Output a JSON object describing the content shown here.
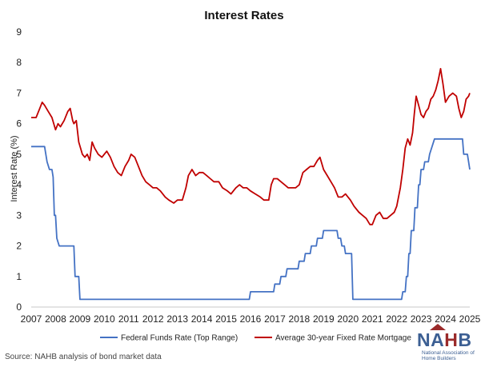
{
  "chart_data": {
    "type": "line",
    "title": "Interest Rates",
    "xlabel": "",
    "ylabel": "Interest Rate (%)",
    "xlim": [
      2007,
      2025
    ],
    "ylim": [
      0,
      9
    ],
    "yticks": [
      "0",
      "1",
      "2",
      "3",
      "4",
      "5",
      "6",
      "7",
      "8",
      "9"
    ],
    "xticks": [
      "2007",
      "2008",
      "2009",
      "2010",
      "2011",
      "2012",
      "2013",
      "2014",
      "2015",
      "2016",
      "2017",
      "2018",
      "2019",
      "2020",
      "2021",
      "2022",
      "2023",
      "2024",
      "2025"
    ],
    "grid": false,
    "legend_position": "bottom",
    "series": [
      {
        "name": "Federal Funds Rate (Top Range)",
        "color": "#4472c4",
        "x": [
          2007.0,
          2007.55,
          2007.65,
          2007.75,
          2007.85,
          2007.9,
          2007.95,
          2008.0,
          2008.05,
          2008.15,
          2008.3,
          2008.4,
          2008.75,
          2008.8,
          2008.95,
          2009.0,
          2015.95,
          2016.0,
          2016.95,
          2017.0,
          2017.2,
          2017.25,
          2017.45,
          2017.5,
          2017.95,
          2018.0,
          2018.2,
          2018.25,
          2018.45,
          2018.5,
          2018.7,
          2018.75,
          2018.95,
          2019.0,
          2019.55,
          2019.6,
          2019.7,
          2019.75,
          2019.85,
          2019.9,
          2020.15,
          2020.2,
          2022.2,
          2022.25,
          2022.35,
          2022.4,
          2022.45,
          2022.5,
          2022.55,
          2022.6,
          2022.7,
          2022.75,
          2022.85,
          2022.9,
          2022.95,
          2023.0,
          2023.1,
          2023.15,
          2023.3,
          2023.35,
          2023.55,
          2024.7,
          2024.75,
          2024.9,
          2024.95,
          2025.0
        ],
        "values": [
          5.25,
          5.25,
          4.75,
          4.5,
          4.5,
          4.25,
          3.0,
          3.0,
          2.25,
          2.0,
          2.0,
          2.0,
          2.0,
          1.0,
          1.0,
          0.25,
          0.25,
          0.5,
          0.5,
          0.75,
          0.75,
          1.0,
          1.0,
          1.25,
          1.25,
          1.5,
          1.5,
          1.75,
          1.75,
          2.0,
          2.0,
          2.25,
          2.25,
          2.5,
          2.5,
          2.25,
          2.25,
          2.0,
          2.0,
          1.75,
          1.75,
          0.25,
          0.25,
          0.5,
          0.5,
          1.0,
          1.0,
          1.75,
          1.75,
          2.5,
          2.5,
          3.25,
          3.25,
          4.0,
          4.0,
          4.5,
          4.5,
          4.75,
          4.75,
          5.0,
          5.5,
          5.5,
          5.0,
          5.0,
          4.75,
          4.5
        ]
      },
      {
        "name": "Average 30-year Fixed Rate Mortgage",
        "color": "#c00000",
        "x": [
          2007.0,
          2007.2,
          2007.35,
          2007.45,
          2007.55,
          2007.7,
          2007.85,
          2008.0,
          2008.1,
          2008.2,
          2008.35,
          2008.5,
          2008.6,
          2008.7,
          2008.75,
          2008.85,
          2008.95,
          2009.1,
          2009.2,
          2009.3,
          2009.4,
          2009.5,
          2009.6,
          2009.75,
          2009.9,
          2010.1,
          2010.25,
          2010.4,
          2010.55,
          2010.7,
          2010.85,
          2011.0,
          2011.1,
          2011.25,
          2011.4,
          2011.55,
          2011.7,
          2011.85,
          2012.0,
          2012.15,
          2012.3,
          2012.5,
          2012.65,
          2012.85,
          2013.0,
          2013.2,
          2013.35,
          2013.45,
          2013.6,
          2013.75,
          2013.9,
          2014.05,
          2014.2,
          2014.35,
          2014.5,
          2014.7,
          2014.85,
          2015.05,
          2015.2,
          2015.4,
          2015.55,
          2015.7,
          2015.85,
          2016.0,
          2016.2,
          2016.4,
          2016.55,
          2016.75,
          2016.85,
          2016.95,
          2017.1,
          2017.25,
          2017.4,
          2017.55,
          2017.7,
          2017.85,
          2018.0,
          2018.15,
          2018.3,
          2018.45,
          2018.6,
          2018.75,
          2018.85,
          2019.0,
          2019.15,
          2019.3,
          2019.45,
          2019.6,
          2019.75,
          2019.9,
          2020.1,
          2020.25,
          2020.45,
          2020.6,
          2020.75,
          2020.9,
          2021.0,
          2021.15,
          2021.3,
          2021.45,
          2021.6,
          2021.75,
          2021.9,
          2022.0,
          2022.15,
          2022.25,
          2022.35,
          2022.45,
          2022.55,
          2022.65,
          2022.72,
          2022.8,
          2022.9,
          2023.0,
          2023.1,
          2023.2,
          2023.3,
          2023.4,
          2023.5,
          2023.6,
          2023.7,
          2023.8,
          2023.9,
          2024.0,
          2024.15,
          2024.3,
          2024.45,
          2024.55,
          2024.65,
          2024.75,
          2024.85,
          2024.95,
          2025.0
        ],
        "values": [
          6.2,
          6.2,
          6.5,
          6.7,
          6.6,
          6.4,
          6.2,
          5.8,
          6.0,
          5.9,
          6.1,
          6.4,
          6.5,
          6.1,
          6.0,
          6.1,
          5.4,
          5.0,
          4.9,
          5.0,
          4.8,
          5.4,
          5.2,
          5.0,
          4.9,
          5.1,
          4.9,
          4.6,
          4.4,
          4.3,
          4.6,
          4.8,
          5.0,
          4.9,
          4.6,
          4.3,
          4.1,
          4.0,
          3.9,
          3.9,
          3.8,
          3.6,
          3.5,
          3.4,
          3.5,
          3.5,
          3.9,
          4.3,
          4.5,
          4.3,
          4.4,
          4.4,
          4.3,
          4.2,
          4.1,
          4.1,
          3.9,
          3.8,
          3.7,
          3.9,
          4.0,
          3.9,
          3.9,
          3.8,
          3.7,
          3.6,
          3.5,
          3.5,
          4.0,
          4.2,
          4.2,
          4.1,
          4.0,
          3.9,
          3.9,
          3.9,
          4.0,
          4.4,
          4.5,
          4.6,
          4.6,
          4.8,
          4.9,
          4.5,
          4.3,
          4.1,
          3.9,
          3.6,
          3.6,
          3.7,
          3.5,
          3.3,
          3.1,
          3.0,
          2.9,
          2.7,
          2.7,
          3.0,
          3.1,
          2.9,
          2.9,
          3.0,
          3.1,
          3.3,
          3.9,
          4.5,
          5.2,
          5.5,
          5.3,
          5.7,
          6.3,
          6.9,
          6.6,
          6.3,
          6.2,
          6.4,
          6.5,
          6.8,
          6.9,
          7.1,
          7.4,
          7.8,
          7.3,
          6.7,
          6.9,
          7.0,
          6.9,
          6.5,
          6.2,
          6.4,
          6.8,
          6.9,
          7.0
        ]
      }
    ]
  },
  "source": "Source: NAHB analysis of bond market data",
  "logo": {
    "letters": [
      "N",
      "A",
      "H",
      "B"
    ],
    "subtitle": "National Association of Home Builders"
  }
}
